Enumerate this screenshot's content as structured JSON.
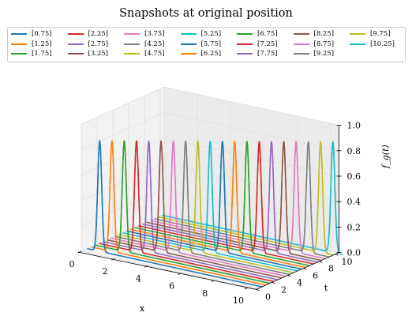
{
  "chart_data": {
    "type": "line",
    "title": "Snapshots at original position",
    "xlabel": "x",
    "ylabel": "t",
    "zlabel": "f_g(t)",
    "xlim": [
      0,
      10.5
    ],
    "ylim": [
      0,
      10.5
    ],
    "zlim": [
      0,
      1.0
    ],
    "x_ticks": [
      "0",
      "2",
      "4",
      "6",
      "8",
      "10"
    ],
    "y_ticks": [
      "0",
      "2",
      "4",
      "6",
      "8",
      "10"
    ],
    "z_ticks": [
      "0.0",
      "0.2",
      "0.4",
      "0.6",
      "0.8",
      "1.0"
    ],
    "legend_placement": "top",
    "legend_columns": 7,
    "peak_value": 0.87,
    "series": [
      {
        "name": "[0.75]",
        "t": 0.75,
        "peak_x": 0.75,
        "color": "#1f77b4"
      },
      {
        "name": "[1.25]",
        "t": 1.25,
        "peak_x": 1.25,
        "color": "#ff7f0e"
      },
      {
        "name": "[1.75]",
        "t": 1.75,
        "peak_x": 1.75,
        "color": "#2ca02c"
      },
      {
        "name": "[2.25]",
        "t": 2.25,
        "peak_x": 2.25,
        "color": "#d62728"
      },
      {
        "name": "[2.75]",
        "t": 2.75,
        "peak_x": 2.75,
        "color": "#9467bd"
      },
      {
        "name": "[3.25]",
        "t": 3.25,
        "peak_x": 3.25,
        "color": "#8c564b"
      },
      {
        "name": "[3.75]",
        "t": 3.75,
        "peak_x": 3.75,
        "color": "#e377c2"
      },
      {
        "name": "[4.25]",
        "t": 4.25,
        "peak_x": 4.25,
        "color": "#7f7f7f"
      },
      {
        "name": "[4.75]",
        "t": 4.75,
        "peak_x": 4.75,
        "color": "#bcbd22"
      },
      {
        "name": "[5.25]",
        "t": 5.25,
        "peak_x": 5.25,
        "color": "#17becf"
      },
      {
        "name": "[5.75]",
        "t": 5.75,
        "peak_x": 5.75,
        "color": "#1f77b4"
      },
      {
        "name": "[6.25]",
        "t": 6.25,
        "peak_x": 6.25,
        "color": "#ff7f0e"
      },
      {
        "name": "[6.75]",
        "t": 6.75,
        "peak_x": 6.75,
        "color": "#2ca02c"
      },
      {
        "name": "[7.25]",
        "t": 7.25,
        "peak_x": 7.25,
        "color": "#d62728"
      },
      {
        "name": "[7.75]",
        "t": 7.75,
        "peak_x": 7.75,
        "color": "#9467bd"
      },
      {
        "name": "[8.25]",
        "t": 8.25,
        "peak_x": 8.25,
        "color": "#8c564b"
      },
      {
        "name": "[8.75]",
        "t": 8.75,
        "peak_x": 8.75,
        "color": "#e377c2"
      },
      {
        "name": "[9.25]",
        "t": 9.25,
        "peak_x": 9.25,
        "color": "#7f7f7f"
      },
      {
        "name": "[9.75]",
        "t": 9.75,
        "peak_x": 9.75,
        "color": "#bcbd22"
      },
      {
        "name": "[10.25]",
        "t": 10.25,
        "peak_x": 10.25,
        "color": "#17becf"
      }
    ]
  }
}
